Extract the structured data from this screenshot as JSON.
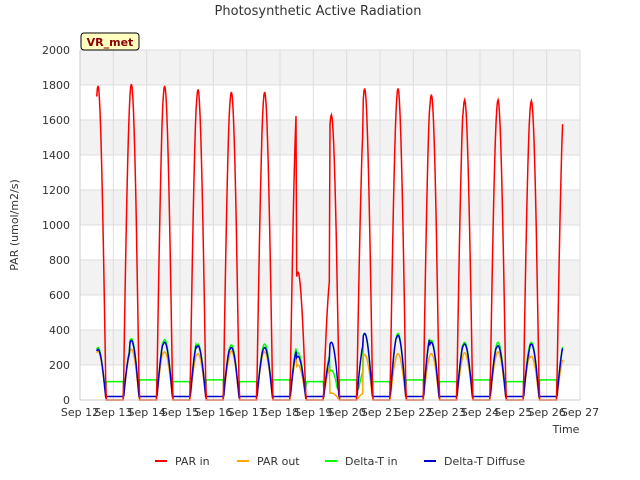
{
  "chart_data": {
    "type": "line",
    "title": "Photosynthetic Active Radiation",
    "xlabel": "Time",
    "ylabel": "PAR (umol/m2/s)",
    "site_label": "VR_met",
    "xlim": [
      0,
      15
    ],
    "ylim": [
      0,
      2000
    ],
    "yticks": [
      0,
      200,
      400,
      600,
      800,
      1000,
      1200,
      1400,
      1600,
      1800,
      2000
    ],
    "xticks": [
      "Sep 12",
      "Sep 13",
      "Sep 14",
      "Sep 15",
      "Sep 16",
      "Sep 17",
      "Sep 18",
      "Sep 19",
      "Sep 20",
      "Sep 21",
      "Sep 22",
      "Sep 23",
      "Sep 24",
      "Sep 25",
      "Sep 26",
      "Sep 27"
    ],
    "grid": true,
    "legend_position": "bottom",
    "series": [
      {
        "name": "PAR in",
        "color": "#ff0000",
        "daily_peaks": [
          1795,
          1805,
          1795,
          1775,
          1760,
          1760,
          730,
          1630,
          1780,
          1780,
          1745,
          1715,
          1715,
          1710
        ]
      },
      {
        "name": "PAR out",
        "color": "#ffa500",
        "daily_peaks": [
          280,
          290,
          275,
          265,
          280,
          275,
          200,
          40,
          260,
          265,
          265,
          270,
          275,
          250
        ]
      },
      {
        "name": "Delta-T in",
        "color": "#00ff00",
        "daily_peaks": [
          300,
          350,
          345,
          320,
          315,
          320,
          270,
          170,
          380,
          380,
          340,
          330,
          330,
          330
        ],
        "night_level": 105
      },
      {
        "name": "Delta-T Diffuse",
        "color": "#0000cc",
        "daily_peaks": [
          290,
          340,
          330,
          310,
          300,
          300,
          250,
          330,
          380,
          370,
          330,
          320,
          310,
          320
        ]
      }
    ]
  }
}
